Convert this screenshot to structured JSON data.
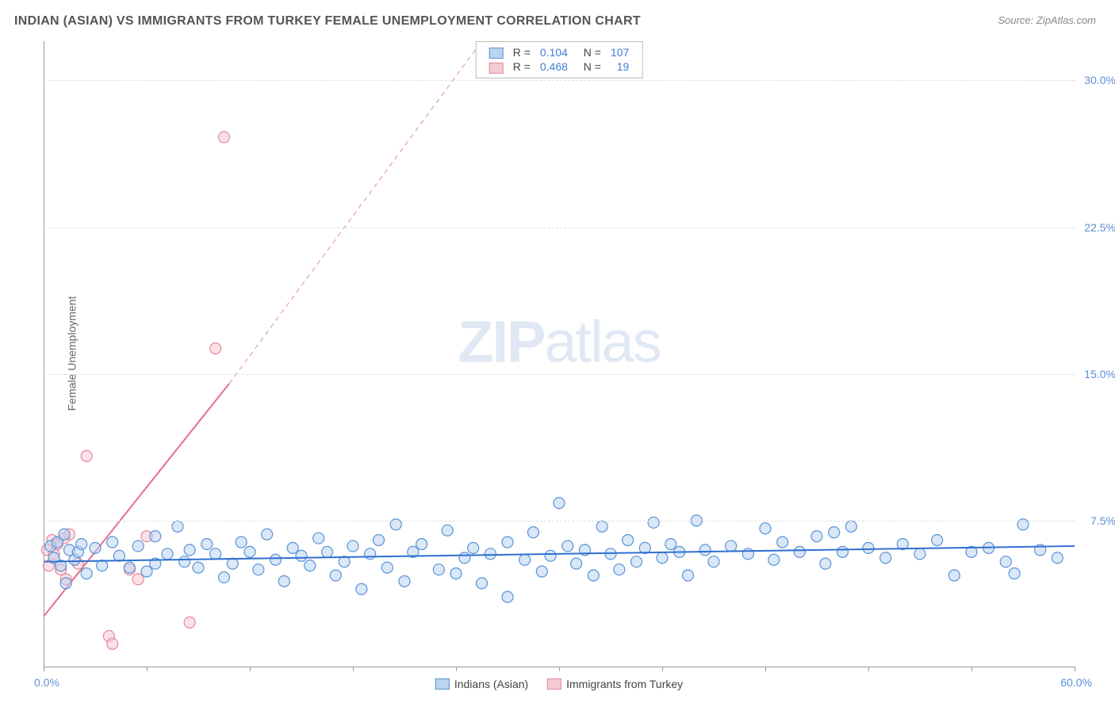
{
  "title": "INDIAN (ASIAN) VS IMMIGRANTS FROM TURKEY FEMALE UNEMPLOYMENT CORRELATION CHART",
  "source": "Source: ZipAtlas.com",
  "watermark": {
    "bold": "ZIP",
    "rest": "atlas"
  },
  "y_axis_title": "Female Unemployment",
  "chart": {
    "type": "scatter",
    "background_color": "#ffffff",
    "grid_color": "#dddddd",
    "axis_color": "#999999",
    "title_color": "#555555",
    "title_fontsize": 16,
    "label_fontsize": 14,
    "tick_label_color": "#5b8fd6",
    "xlim": [
      0,
      60
    ],
    "ylim": [
      0,
      32
    ],
    "y_ticks": [
      7.5,
      15.0,
      22.5,
      30.0
    ],
    "y_tick_labels": [
      "7.5%",
      "15.0%",
      "22.5%",
      "30.0%"
    ],
    "x_ticks": [
      0,
      6,
      12,
      18,
      24,
      30,
      36,
      42,
      48,
      54,
      60
    ],
    "x_label_min": "0.0%",
    "x_label_max": "60.0%",
    "marker_radius": 7,
    "marker_stroke_width": 1.2,
    "series": [
      {
        "name": "Indians (Asian)",
        "fill": "#b9d3f0",
        "stroke": "#5b93d6",
        "fill_opacity": 0.55,
        "R": "0.104",
        "N": "107",
        "trend": {
          "x1": 0,
          "y1": 5.4,
          "x2": 60,
          "y2": 6.2,
          "color": "#2f6fd0",
          "width": 2,
          "dash": ""
        },
        "points": [
          [
            0.4,
            6.2
          ],
          [
            0.6,
            5.6
          ],
          [
            0.8,
            6.4
          ],
          [
            1.0,
            5.2
          ],
          [
            1.2,
            6.8
          ],
          [
            1.3,
            4.3
          ],
          [
            1.5,
            6.0
          ],
          [
            1.8,
            5.5
          ],
          [
            2.0,
            5.9
          ],
          [
            2.2,
            6.3
          ],
          [
            2.5,
            4.8
          ],
          [
            3.0,
            6.1
          ],
          [
            3.4,
            5.2
          ],
          [
            4.0,
            6.4
          ],
          [
            4.4,
            5.7
          ],
          [
            5.0,
            5.1
          ],
          [
            5.5,
            6.2
          ],
          [
            6.0,
            4.9
          ],
          [
            6.5,
            6.7
          ],
          [
            6.5,
            5.3
          ],
          [
            7.2,
            5.8
          ],
          [
            7.8,
            7.2
          ],
          [
            8.2,
            5.4
          ],
          [
            8.5,
            6.0
          ],
          [
            9.0,
            5.1
          ],
          [
            9.5,
            6.3
          ],
          [
            10.0,
            5.8
          ],
          [
            10.5,
            4.6
          ],
          [
            11.0,
            5.3
          ],
          [
            11.5,
            6.4
          ],
          [
            12.0,
            5.9
          ],
          [
            12.5,
            5.0
          ],
          [
            13.0,
            6.8
          ],
          [
            13.5,
            5.5
          ],
          [
            14.0,
            4.4
          ],
          [
            14.5,
            6.1
          ],
          [
            15.0,
            5.7
          ],
          [
            15.5,
            5.2
          ],
          [
            16.0,
            6.6
          ],
          [
            16.5,
            5.9
          ],
          [
            17.0,
            4.7
          ],
          [
            17.5,
            5.4
          ],
          [
            18.0,
            6.2
          ],
          [
            18.5,
            4.0
          ],
          [
            19.0,
            5.8
          ],
          [
            19.5,
            6.5
          ],
          [
            20.0,
            5.1
          ],
          [
            20.5,
            7.3
          ],
          [
            21.0,
            4.4
          ],
          [
            21.5,
            5.9
          ],
          [
            22.0,
            6.3
          ],
          [
            23.0,
            5.0
          ],
          [
            23.5,
            7.0
          ],
          [
            24.0,
            4.8
          ],
          [
            24.5,
            5.6
          ],
          [
            25.0,
            6.1
          ],
          [
            25.5,
            4.3
          ],
          [
            26.0,
            5.8
          ],
          [
            27.0,
            6.4
          ],
          [
            27.0,
            3.6
          ],
          [
            28.0,
            5.5
          ],
          [
            28.5,
            6.9
          ],
          [
            29.0,
            4.9
          ],
          [
            29.5,
            5.7
          ],
          [
            30.0,
            8.4
          ],
          [
            30.5,
            6.2
          ],
          [
            31.0,
            5.3
          ],
          [
            31.5,
            6.0
          ],
          [
            32.0,
            4.7
          ],
          [
            32.5,
            7.2
          ],
          [
            33.0,
            5.8
          ],
          [
            33.5,
            5.0
          ],
          [
            34.0,
            6.5
          ],
          [
            34.5,
            5.4
          ],
          [
            35.0,
            6.1
          ],
          [
            35.5,
            7.4
          ],
          [
            36.0,
            5.6
          ],
          [
            36.5,
            6.3
          ],
          [
            37.0,
            5.9
          ],
          [
            37.5,
            4.7
          ],
          [
            38.0,
            7.5
          ],
          [
            38.5,
            6.0
          ],
          [
            39.0,
            5.4
          ],
          [
            40.0,
            6.2
          ],
          [
            41.0,
            5.8
          ],
          [
            42.0,
            7.1
          ],
          [
            42.5,
            5.5
          ],
          [
            43.0,
            6.4
          ],
          [
            44.0,
            5.9
          ],
          [
            45.0,
            6.7
          ],
          [
            45.5,
            5.3
          ],
          [
            46.0,
            6.9
          ],
          [
            46.5,
            5.9
          ],
          [
            47.0,
            7.2
          ],
          [
            48.0,
            6.1
          ],
          [
            49.0,
            5.6
          ],
          [
            50.0,
            6.3
          ],
          [
            51.0,
            5.8
          ],
          [
            52.0,
            6.5
          ],
          [
            53.0,
            4.7
          ],
          [
            54.0,
            5.9
          ],
          [
            55.0,
            6.1
          ],
          [
            56.0,
            5.4
          ],
          [
            57.0,
            7.3
          ],
          [
            58.0,
            6.0
          ],
          [
            59.0,
            5.6
          ],
          [
            56.5,
            4.8
          ]
        ]
      },
      {
        "name": "Immigrants from Turkey",
        "fill": "#f5c9d2",
        "stroke": "#e38aa0",
        "fill_opacity": 0.55,
        "R": "0.468",
        "N": "19",
        "trend_solid": {
          "x1": 0,
          "y1": 2.6,
          "x2": 10.8,
          "y2": 14.5,
          "color": "#e36f8c",
          "width": 2
        },
        "trend_dash": {
          "x1": 10.8,
          "y1": 14.5,
          "x2": 25.5,
          "y2": 32,
          "color": "#e8aab8",
          "width": 1.4,
          "dash": "6 5"
        },
        "points": [
          [
            0.2,
            6.0
          ],
          [
            0.3,
            5.2
          ],
          [
            0.5,
            6.5
          ],
          [
            0.6,
            5.8
          ],
          [
            0.8,
            6.3
          ],
          [
            1.0,
            5.0
          ],
          [
            1.2,
            6.6
          ],
          [
            1.3,
            4.5
          ],
          [
            1.5,
            6.8
          ],
          [
            2.0,
            5.3
          ],
          [
            2.5,
            10.8
          ],
          [
            3.8,
            1.6
          ],
          [
            4.0,
            1.2
          ],
          [
            5.0,
            5.0
          ],
          [
            5.5,
            4.5
          ],
          [
            6.0,
            6.7
          ],
          [
            8.5,
            2.3
          ],
          [
            10.0,
            16.3
          ],
          [
            10.5,
            27.1
          ]
        ]
      }
    ]
  },
  "legend_bottom": [
    {
      "label": "Indians (Asian)",
      "fill": "#b9d3f0",
      "stroke": "#5b93d6"
    },
    {
      "label": "Immigrants from Turkey",
      "fill": "#f5c9d2",
      "stroke": "#e38aa0"
    }
  ]
}
